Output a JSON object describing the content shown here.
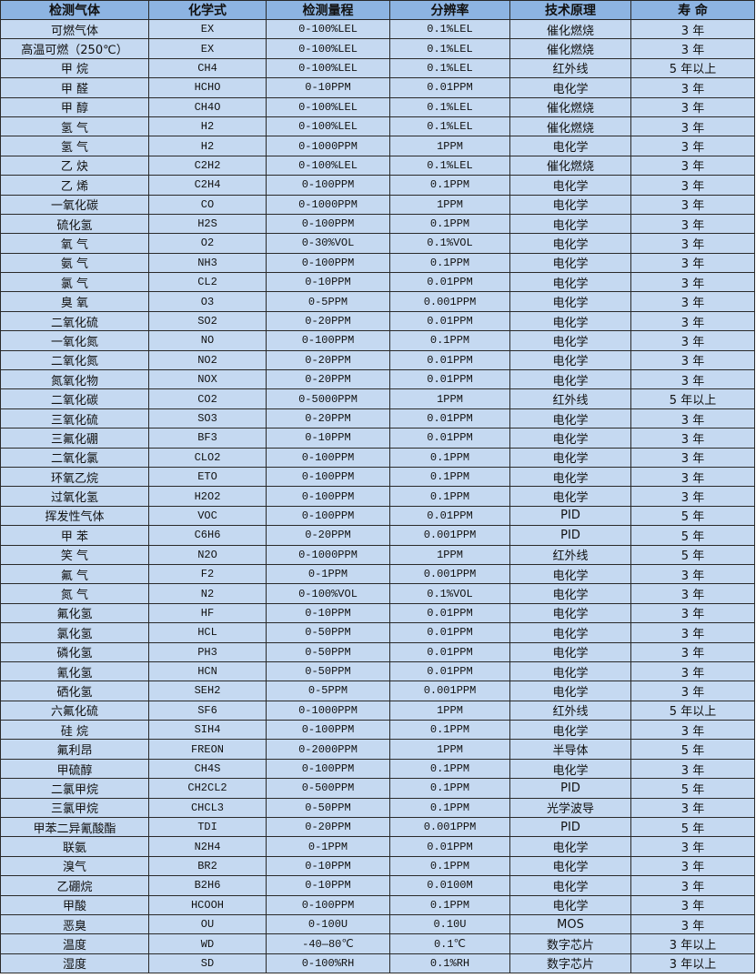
{
  "colors": {
    "header_bg": "#8db4e2",
    "row_bg": "#c5d9f1",
    "border": "#2a2a2a"
  },
  "headers": [
    "检测气体",
    "化学式",
    "检测量程",
    "分辨率",
    "技术原理",
    "寿 命"
  ],
  "rows": [
    [
      "可燃气体",
      "EX",
      "0-100%LEL",
      "0.1%LEL",
      "催化燃烧",
      "3 年"
    ],
    [
      "高温可燃（250℃）",
      "EX",
      "0-100%LEL",
      "0.1%LEL",
      "催化燃烧",
      "3 年"
    ],
    [
      "甲 烷",
      "CH4",
      "0-100%LEL",
      "0.1%LEL",
      "红外线",
      "5 年以上"
    ],
    [
      "甲 醛",
      "HCHO",
      "0-10PPM",
      "0.01PPM",
      "电化学",
      "3 年"
    ],
    [
      "甲 醇",
      "CH4O",
      "0-100%LEL",
      "0.1%LEL",
      "催化燃烧",
      "3 年"
    ],
    [
      "氢 气",
      "H2",
      "0-100%LEL",
      "0.1%LEL",
      "催化燃烧",
      "3 年"
    ],
    [
      "氢 气",
      "H2",
      "0-1000PPM",
      "1PPM",
      "电化学",
      "3 年"
    ],
    [
      "乙 炔",
      "C2H2",
      "0-100%LEL",
      "0.1%LEL",
      "催化燃烧",
      "3 年"
    ],
    [
      "乙 烯",
      "C2H4",
      "0-100PPM",
      "0.1PPM",
      "电化学",
      "3 年"
    ],
    [
      "一氧化碳",
      "CO",
      "0-1000PPM",
      "1PPM",
      "电化学",
      "3 年"
    ],
    [
      "硫化氢",
      "H2S",
      "0-100PPM",
      "0.1PPM",
      "电化学",
      "3 年"
    ],
    [
      "氧 气",
      "O2",
      "0-30%VOL",
      "0.1%VOL",
      "电化学",
      "3 年"
    ],
    [
      "氨 气",
      "NH3",
      "0-100PPM",
      "0.1PPM",
      "电化学",
      "3 年"
    ],
    [
      "氯 气",
      "CL2",
      "0-10PPM",
      "0.01PPM",
      "电化学",
      "3 年"
    ],
    [
      "臭 氧",
      "O3",
      "0-5PPM",
      "0.001PPM",
      "电化学",
      "3 年"
    ],
    [
      "二氧化硫",
      "SO2",
      "0-20PPM",
      "0.01PPM",
      "电化学",
      "3 年"
    ],
    [
      "一氧化氮",
      "NO",
      "0-100PPM",
      "0.1PPM",
      "电化学",
      "3 年"
    ],
    [
      "二氧化氮",
      "NO2",
      "0-20PPM",
      "0.01PPM",
      "电化学",
      "3 年"
    ],
    [
      "氮氧化物",
      "NOX",
      "0-20PPM",
      "0.01PPM",
      "电化学",
      "3 年"
    ],
    [
      "二氧化碳",
      "CO2",
      "0-5000PPM",
      "1PPM",
      "红外线",
      "5 年以上"
    ],
    [
      "三氧化硫",
      "SO3",
      "0-20PPM",
      "0.01PPM",
      "电化学",
      "3 年"
    ],
    [
      "三氟化硼",
      "BF3",
      "0-10PPM",
      "0.01PPM",
      "电化学",
      "3 年"
    ],
    [
      "二氧化氯",
      "CLO2",
      "0-100PPM",
      "0.1PPM",
      "电化学",
      "3 年"
    ],
    [
      "环氧乙烷",
      "ETO",
      "0-100PPM",
      "0.1PPM",
      "电化学",
      "3 年"
    ],
    [
      "过氧化氢",
      "H2O2",
      "0-100PPM",
      "0.1PPM",
      "电化学",
      "3 年"
    ],
    [
      "挥发性气体",
      "VOC",
      "0-100PPM",
      "0.01PPM",
      "PID",
      "5 年"
    ],
    [
      "甲 苯",
      "C6H6",
      "0-20PPM",
      "0.001PPM",
      "PID",
      "5 年"
    ],
    [
      "笑 气",
      "N2O",
      "0-1000PPM",
      "1PPM",
      "红外线",
      "5 年"
    ],
    [
      "氟 气",
      "F2",
      "0-1PPM",
      "0.001PPM",
      "电化学",
      "3 年"
    ],
    [
      "氮 气",
      "N2",
      "0-100%VOL",
      "0.1%VOL",
      "电化学",
      "3 年"
    ],
    [
      "氟化氢",
      "HF",
      "0-10PPM",
      "0.01PPM",
      "电化学",
      "3 年"
    ],
    [
      "氯化氢",
      "HCL",
      "0-50PPM",
      "0.01PPM",
      "电化学",
      "3 年"
    ],
    [
      "磷化氢",
      "PH3",
      "0-50PPM",
      "0.01PPM",
      "电化学",
      "3 年"
    ],
    [
      "氰化氢",
      "HCN",
      "0-50PPM",
      "0.01PPM",
      "电化学",
      "3 年"
    ],
    [
      "硒化氢",
      "SEH2",
      "0-5PPM",
      "0.001PPM",
      "电化学",
      "3 年"
    ],
    [
      "六氟化硫",
      "SF6",
      "0-1000PPM",
      "1PPM",
      "红外线",
      "5 年以上"
    ],
    [
      "硅 烷",
      "SIH4",
      "0-100PPM",
      "0.1PPM",
      "电化学",
      "3 年"
    ],
    [
      "氟利昂",
      "FREON",
      "0-2000PPM",
      "1PPM",
      "半导体",
      "5 年"
    ],
    [
      "甲硫醇",
      "CH4S",
      "0-100PPM",
      "0.1PPM",
      "电化学",
      "3 年"
    ],
    [
      "二氯甲烷",
      "CH2CL2",
      "0-500PPM",
      "0.1PPM",
      "PID",
      "5 年"
    ],
    [
      "三氯甲烷",
      "CHCL3",
      "0-50PPM",
      "0.1PPM",
      "光学波导",
      "3 年"
    ],
    [
      "甲苯二异氰酸酯",
      "TDI",
      "0-20PPM",
      "0.001PPM",
      "PID",
      "5 年"
    ],
    [
      "联氨",
      "N2H4",
      "0-1PPM",
      "0.01PPM",
      "电化学",
      "3 年"
    ],
    [
      "溴气",
      "BR2",
      "0-10PPM",
      "0.1PPM",
      "电化学",
      "3 年"
    ],
    [
      "乙硼烷",
      "B2H6",
      "0-10PPM",
      "0.0100M",
      "电化学",
      "3 年"
    ],
    [
      "甲酸",
      "HCOOH",
      "0-100PPM",
      "0.1PPM",
      "电化学",
      "3 年"
    ],
    [
      "恶臭",
      "OU",
      "0-100U",
      "0.10U",
      "MOS",
      "3 年"
    ],
    [
      "温度",
      "WD",
      "-40—80℃",
      "0.1℃",
      "数字芯片",
      "3 年以上"
    ],
    [
      "湿度",
      "SD",
      "0-100%RH",
      "0.1%RH",
      "数字芯片",
      "3 年以上"
    ]
  ]
}
